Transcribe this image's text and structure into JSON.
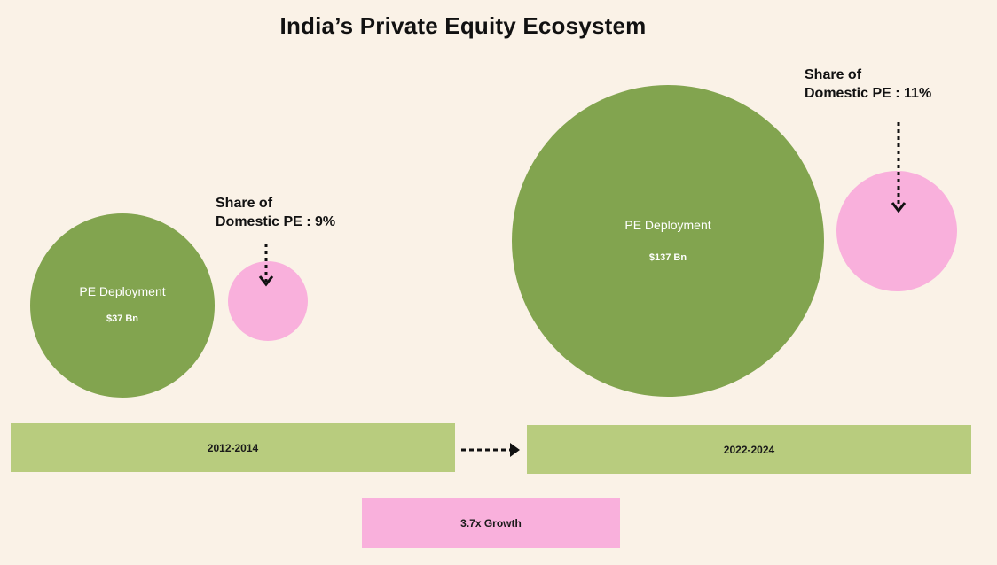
{
  "title": "India’s Private Equity Ecosystem",
  "colors": {
    "background": "#FAF2E7",
    "deployment": "#82A44F",
    "domestic_share": "#F9B0DC",
    "period_bar": "#B8CC7E",
    "growth_bar": "#F9B0DC"
  },
  "chart_data": {
    "type": "bubble",
    "title": "India’s Private Equity Ecosystem",
    "series": [
      {
        "period": "2012-2014",
        "deployment_label": "PE Deployment",
        "deployment_value": 37,
        "deployment_value_text": "$37 Bn",
        "domestic_share_label": "Share of",
        "domestic_share_label2": "Domestic PE : 9%",
        "domestic_share_pct": 9
      },
      {
        "period": "2022-2024",
        "deployment_label": "PE Deployment",
        "deployment_value": 137,
        "deployment_value_text": "$137 Bn",
        "domestic_share_label": "Share of",
        "domestic_share_label2": "Domestic PE : 11%",
        "domestic_share_pct": 11
      }
    ],
    "growth_label": "3.7x Growth"
  }
}
